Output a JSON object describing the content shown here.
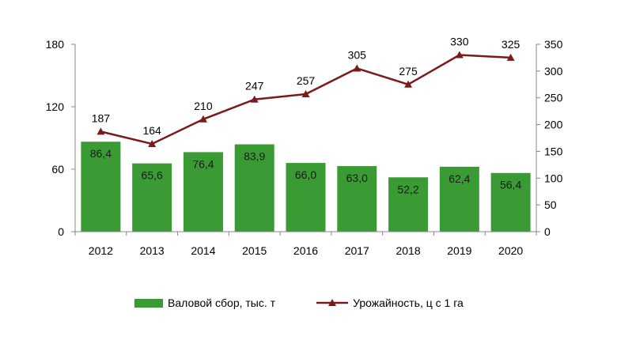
{
  "chart_data": {
    "type": "bar",
    "categories": [
      "2012",
      "2013",
      "2014",
      "2015",
      "2016",
      "2017",
      "2018",
      "2019",
      "2020"
    ],
    "series": [
      {
        "name": "Валовой сбор, тыс. т",
        "type": "bar",
        "axis": "left",
        "values": [
          86.4,
          65.6,
          76.4,
          83.9,
          66.0,
          63.0,
          52.2,
          62.4,
          56.4
        ],
        "labels": [
          "86,4",
          "65,6",
          "76,4",
          "83,9",
          "66,0",
          "63,0",
          "52,2",
          "62,4",
          "56,4"
        ],
        "color": "#3a9b35"
      },
      {
        "name": "Урожайность, ц с 1 га",
        "type": "line",
        "axis": "right",
        "values": [
          187,
          164,
          210,
          247,
          257,
          305,
          275,
          330,
          325
        ],
        "labels": [
          "187",
          "164",
          "210",
          "247",
          "257",
          "305",
          "275",
          "330",
          "325"
        ],
        "color": "#7b1a1a",
        "marker": "triangle"
      }
    ],
    "y_left": {
      "ylim": [
        0,
        180
      ],
      "ticks": [
        "0",
        "60",
        "120",
        "180"
      ]
    },
    "y_right": {
      "ylim": [
        0,
        350
      ],
      "ticks": [
        "0",
        "50",
        "100",
        "150",
        "200",
        "250",
        "300",
        "350"
      ]
    },
    "grid": false,
    "legend_position": "bottom"
  }
}
